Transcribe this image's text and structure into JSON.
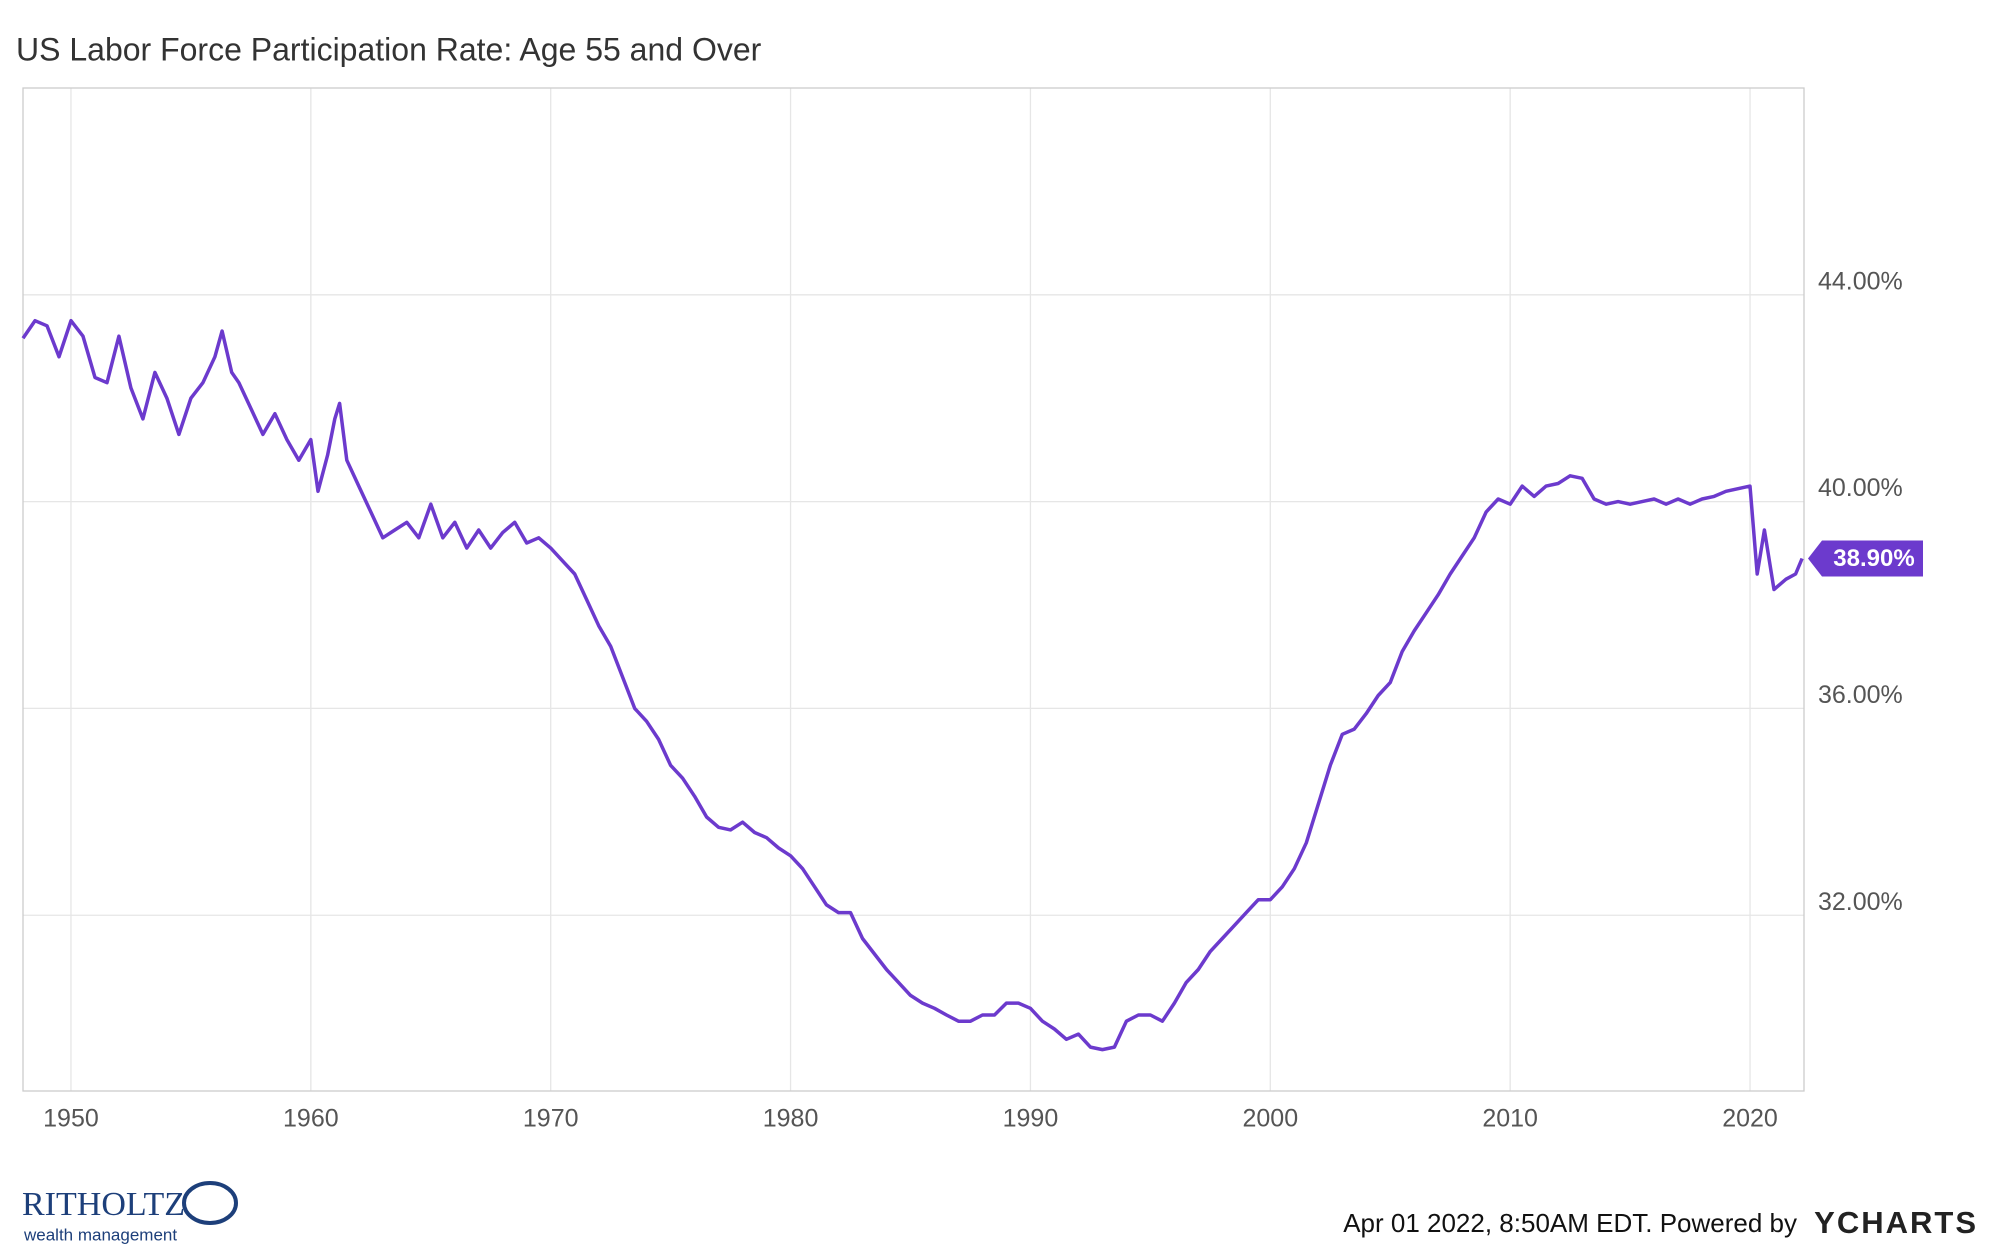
{
  "chart_data": {
    "type": "line",
    "title": "US Labor Force Participation Rate: Age 55 and Over",
    "x": [
      1948.0,
      1948.5,
      1949.0,
      1949.5,
      1950.0,
      1950.5,
      1951.0,
      1951.5,
      1952.0,
      1952.5,
      1953.0,
      1953.5,
      1954.0,
      1954.5,
      1955.0,
      1955.5,
      1956.0,
      1956.3,
      1956.7,
      1957.0,
      1957.5,
      1958.0,
      1958.5,
      1959.0,
      1959.5,
      1960.0,
      1960.3,
      1960.7,
      1961.0,
      1961.2,
      1961.5,
      1962.0,
      1962.5,
      1963.0,
      1963.5,
      1964.0,
      1964.5,
      1965.0,
      1965.5,
      1966.0,
      1966.5,
      1967.0,
      1967.5,
      1968.0,
      1968.5,
      1969.0,
      1969.5,
      1970.0,
      1970.5,
      1971.0,
      1971.5,
      1972.0,
      1972.5,
      1973.0,
      1973.5,
      1974.0,
      1974.5,
      1975.0,
      1975.5,
      1976.0,
      1976.5,
      1977.0,
      1977.5,
      1978.0,
      1978.5,
      1979.0,
      1979.5,
      1980.0,
      1980.5,
      1981.0,
      1981.5,
      1982.0,
      1982.5,
      1983.0,
      1983.5,
      1984.0,
      1984.5,
      1985.0,
      1985.5,
      1986.0,
      1986.5,
      1987.0,
      1987.5,
      1988.0,
      1988.5,
      1989.0,
      1989.5,
      1990.0,
      1990.5,
      1991.0,
      1991.5,
      1992.0,
      1992.5,
      1993.0,
      1993.5,
      1994.0,
      1994.5,
      1995.0,
      1995.5,
      1996.0,
      1996.5,
      1997.0,
      1997.5,
      1998.0,
      1998.5,
      1999.0,
      1999.5,
      2000.0,
      2000.5,
      2001.0,
      2001.5,
      2002.0,
      2002.5,
      2003.0,
      2003.5,
      2004.0,
      2004.5,
      2005.0,
      2005.5,
      2006.0,
      2006.5,
      2007.0,
      2007.5,
      2008.0,
      2008.5,
      2009.0,
      2009.5,
      2010.0,
      2010.5,
      2011.0,
      2011.5,
      2012.0,
      2012.5,
      2013.0,
      2013.5,
      2014.0,
      2014.5,
      2015.0,
      2015.5,
      2016.0,
      2016.5,
      2017.0,
      2017.5,
      2018.0,
      2018.5,
      2019.0,
      2019.5,
      2020.0,
      2020.3,
      2020.6,
      2021.0,
      2021.5,
      2021.9,
      2022.17
    ],
    "series": [
      {
        "name": "US Labor Force Participation Rate: Age 55 and Over",
        "color": "#6c3acd",
        "values": [
          43.16,
          43.5,
          43.4,
          42.8,
          43.5,
          43.2,
          42.4,
          42.3,
          43.2,
          42.2,
          41.6,
          42.5,
          42.0,
          41.3,
          42.0,
          42.3,
          42.8,
          43.3,
          42.5,
          42.3,
          41.8,
          41.3,
          41.7,
          41.2,
          40.8,
          41.2,
          40.2,
          40.9,
          41.6,
          41.9,
          40.8,
          40.3,
          39.8,
          39.3,
          39.45,
          39.6,
          39.3,
          39.95,
          39.3,
          39.6,
          39.1,
          39.45,
          39.1,
          39.4,
          39.6,
          39.2,
          39.3,
          39.1,
          38.85,
          38.6,
          38.1,
          37.6,
          37.2,
          36.6,
          36.0,
          35.75,
          35.4,
          34.9,
          34.65,
          34.3,
          33.9,
          33.7,
          33.65,
          33.8,
          33.6,
          33.5,
          33.3,
          33.15,
          32.9,
          32.55,
          32.2,
          32.05,
          32.05,
          31.55,
          31.25,
          30.95,
          30.7,
          30.45,
          30.3,
          30.2,
          30.07,
          29.95,
          29.95,
          30.07,
          30.07,
          30.3,
          30.3,
          30.2,
          29.95,
          29.8,
          29.6,
          29.7,
          29.45,
          29.4,
          29.45,
          29.95,
          30.07,
          30.07,
          29.95,
          30.3,
          30.7,
          30.95,
          31.3,
          31.55,
          31.8,
          32.05,
          32.3,
          32.3,
          32.55,
          32.9,
          33.4,
          34.15,
          34.9,
          35.5,
          35.6,
          35.9,
          36.25,
          36.5,
          37.1,
          37.5,
          37.85,
          38.2,
          38.6,
          38.95,
          39.3,
          39.8,
          40.05,
          39.95,
          40.3,
          40.1,
          40.3,
          40.35,
          40.5,
          40.45,
          40.05,
          39.95,
          40.0,
          39.95,
          40.0,
          40.05,
          39.95,
          40.05,
          39.95,
          40.05,
          40.1,
          40.2,
          40.25,
          40.3,
          38.6,
          39.45,
          38.3,
          38.5,
          38.6,
          38.9
        ]
      }
    ],
    "current_value": {
      "value": 38.9,
      "label": "38.90%"
    },
    "xlim": [
      1948,
      2022.25
    ],
    "xticks": [
      1950,
      1960,
      1970,
      1980,
      1990,
      2000,
      2010,
      2020
    ],
    "ylim": [
      28.6,
      48
    ],
    "yticks": [
      {
        "value": 32,
        "label": "32.00%"
      },
      {
        "value": 36,
        "label": "36.00%"
      },
      {
        "value": 40,
        "label": "40.00%"
      },
      {
        "value": 44,
        "label": "44.00%"
      }
    ],
    "grid": true,
    "footer": "Apr 01 2022, 8:50AM EDT. Powered by",
    "brand": "YCHARTS",
    "logo": "RITHOLTZ",
    "logo_sub": "wealth management"
  }
}
